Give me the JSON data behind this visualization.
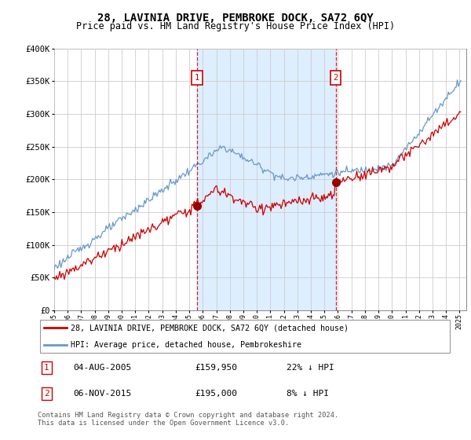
{
  "title": "28, LAVINIA DRIVE, PEMBROKE DOCK, SA72 6QY",
  "subtitle": "Price paid vs. HM Land Registry's House Price Index (HPI)",
  "ylim": [
    0,
    400000
  ],
  "yticks": [
    0,
    50000,
    100000,
    150000,
    200000,
    250000,
    300000,
    350000,
    400000
  ],
  "ytick_labels": [
    "£0",
    "£50K",
    "£100K",
    "£150K",
    "£200K",
    "£250K",
    "£300K",
    "£350K",
    "£400K"
  ],
  "xlim_start": 1995.0,
  "xlim_end": 2025.5,
  "transaction1": {
    "year": 2005.585,
    "price": 159950,
    "label": "1",
    "date": "04-AUG-2005",
    "hpi_diff": "22% ↓ HPI"
  },
  "transaction2": {
    "year": 2015.84,
    "price": 195000,
    "label": "2",
    "date": "06-NOV-2015",
    "hpi_diff": "8% ↓ HPI"
  },
  "legend_entry1": "28, LAVINIA DRIVE, PEMBROKE DOCK, SA72 6QY (detached house)",
  "legend_entry2": "HPI: Average price, detached house, Pembrokeshire",
  "footer": "Contains HM Land Registry data © Crown copyright and database right 2024.\nThis data is licensed under the Open Government Licence v3.0.",
  "price_color": "#cc0000",
  "hpi_color": "#6699cc",
  "shade_color": "#ddeeff",
  "background_color": "#ffffff",
  "grid_color": "#cccccc",
  "title_fontsize": 10,
  "subtitle_fontsize": 8.5,
  "axis_fontsize": 7.5
}
